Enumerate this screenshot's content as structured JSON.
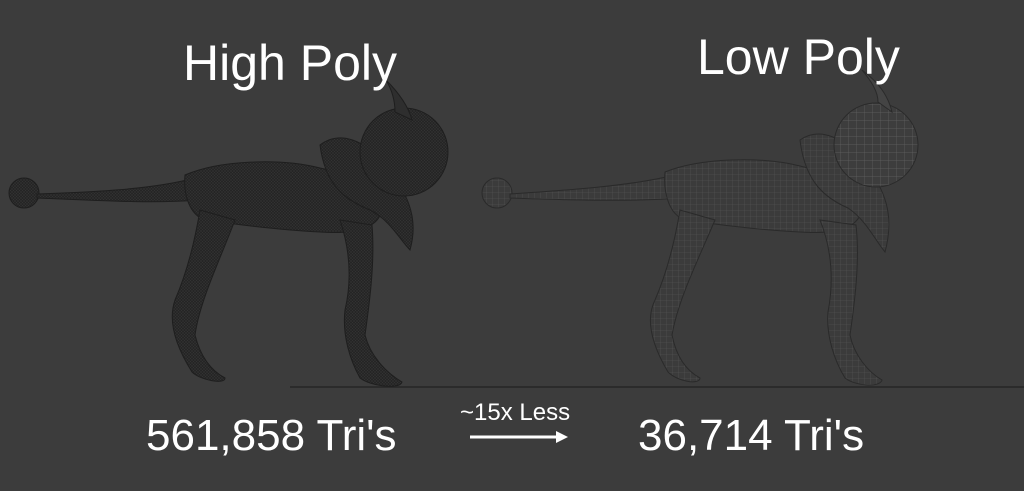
{
  "comparison": {
    "left_title": "High Poly",
    "right_title": "Low Poly",
    "left_count": "561,858 Tri's",
    "right_count": "36,714 Tri's",
    "ratio_label": "~15x Less",
    "arrow_icon": "right-arrow-icon"
  },
  "colors": {
    "background": "#3c3c3c",
    "text": "#ffffff",
    "high_poly_fill": "#2a2a2a",
    "low_poly_fill": "#3e3e3e",
    "wire": "#555555",
    "ground": "#2e2e2e"
  }
}
